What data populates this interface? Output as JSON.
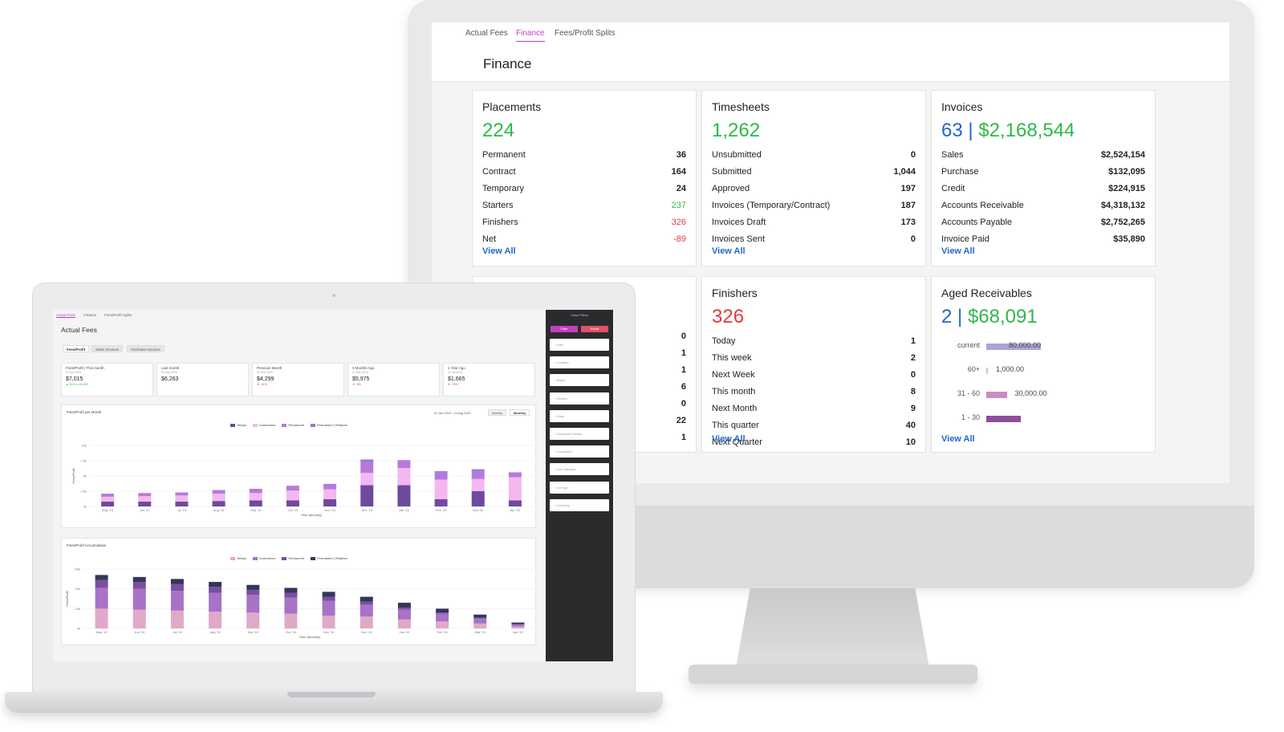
{
  "desktop": {
    "tabs": [
      {
        "label": "Actual Fees",
        "active": false
      },
      {
        "label": "Finance",
        "active": true
      },
      {
        "label": "Fees/Profit Splits",
        "active": false
      }
    ],
    "page_title": "Finance",
    "view_all": "View All",
    "cards": {
      "placements": {
        "title": "Placements",
        "big": "224",
        "rows": [
          {
            "label": "Permanent",
            "value": "36"
          },
          {
            "label": "Contract",
            "value": "164"
          },
          {
            "label": "Temporary",
            "value": "24"
          },
          {
            "label": "Starters",
            "value": "237"
          },
          {
            "label": "Finishers",
            "value": "326"
          },
          {
            "label": "Net",
            "value": "-89"
          }
        ]
      },
      "timesheets": {
        "title": "Timesheets",
        "big": "1,262",
        "rows": [
          {
            "label": "Unsubmitted",
            "value": "0"
          },
          {
            "label": "Submitted",
            "value": "1,044"
          },
          {
            "label": "Approved",
            "value": "197"
          },
          {
            "label": "Invoices (Temporary/Contract)",
            "value": "187"
          },
          {
            "label": "Invoices Draft",
            "value": "173"
          },
          {
            "label": "Invoices Sent",
            "value": "0"
          }
        ]
      },
      "invoices": {
        "title": "Invoices",
        "big_count": "63",
        "big_sep": " | ",
        "big_amount": "$2,168,544",
        "rows": [
          {
            "label": "Sales",
            "value": "$2,524,154"
          },
          {
            "label": "Purchase",
            "value": "$132,095"
          },
          {
            "label": "Credit",
            "value": "$224,915"
          },
          {
            "label": "Accounts Receivable",
            "value": "$4,318,132"
          },
          {
            "label": "Accounts Payable",
            "value": "$2,752,265"
          },
          {
            "label": "Invoice Paid",
            "value": "$35,890"
          }
        ]
      },
      "partial": {
        "values": [
          "0",
          "1",
          "1",
          "6",
          "0",
          "22",
          "1"
        ]
      },
      "finishers": {
        "title": "Finishers",
        "big": "326",
        "rows": [
          {
            "label": "Today",
            "value": "1"
          },
          {
            "label": "This week",
            "value": "2"
          },
          {
            "label": "Next Week",
            "value": "0"
          },
          {
            "label": "This month",
            "value": "8"
          },
          {
            "label": "Next Month",
            "value": "9"
          },
          {
            "label": "This quarter",
            "value": "40"
          },
          {
            "label": "Next Quarter",
            "value": "10"
          }
        ]
      },
      "aged": {
        "title": "Aged Receivables",
        "big_count": "2",
        "big_sep": " | ",
        "big_amount": "$68,091",
        "buckets": [
          {
            "label": "current",
            "value": "80,000.00",
            "amount": 80000,
            "color": "#a9a6d6"
          },
          {
            "label": "60+",
            "value": "1,000.00",
            "amount": 1000,
            "color": "#c9c9d6"
          },
          {
            "label": "31 - 60",
            "value": "30,000.00",
            "amount": 30000,
            "color": "#cc8ac6"
          },
          {
            "label": "1 - 30",
            "value": "",
            "amount": 50000,
            "color": "#8a4e9c"
          }
        ]
      }
    }
  },
  "laptop": {
    "tabs": [
      {
        "label": "Actual Fees",
        "active": true
      },
      {
        "label": "Finance",
        "active": false
      },
      {
        "label": "Fees/Profit Splits",
        "active": false
      }
    ],
    "title": "Actual Fees",
    "subtabs": [
      {
        "label": "Fees/Profit",
        "active": true
      },
      {
        "label": "Sales Invoices",
        "active": false
      },
      {
        "label": "Purchase Invoices",
        "active": false
      }
    ],
    "kpis": [
      {
        "title": "Fees/Profit | This month",
        "sub": "01 Apr 2020",
        "value": "$7,015",
        "delta": "▲ 92% vs $3,263",
        "delta_color": "#2eb84a"
      },
      {
        "title": "Last month",
        "sub": "01 Mar 2020",
        "value": "$6,263",
        "delta": "",
        "delta_color": "#2eb84a"
      },
      {
        "title": "Previous Month",
        "sub": "01 Feb 2020",
        "value": "$4,299",
        "delta": "▼ -31%",
        "delta_color": "#e23b3b"
      },
      {
        "title": "3 Months Ago",
        "sub": "01 Dec 2019",
        "value": "$5,975",
        "delta": "▼ -5%",
        "delta_color": "#e23b3b"
      },
      {
        "title": "1 Year Ago",
        "sub": "01 Jul 2019",
        "value": "$1,665",
        "delta": "▼ -73%",
        "delta_color": "#e23b3b"
      }
    ],
    "filters": {
      "header": "Close Filters",
      "filter_btn": "Filter",
      "reset_btn": "Reset",
      "fields": [
        "Date",
        "Location",
        "Brand",
        "Division",
        "Team",
        "Consultant Status",
        "Consultant",
        "Job Category",
        "Job type",
        "Currency"
      ]
    },
    "range": {
      "date_range": "01 Jan 2019 - 13 Aug 2020",
      "weekly": "Weekly",
      "monthly": "Monthly"
    }
  },
  "chart_data": [
    {
      "type": "bar",
      "title": "Fees/Profit per Month",
      "xlabel": "Time (Monthly)",
      "ylabel": "Fees/Profit",
      "categories": [
        "May '19",
        "Jun '19",
        "Jul '19",
        "Aug '19",
        "Sep '19",
        "Oct '19",
        "Nov '19",
        "Dec '19",
        "Jan '20",
        "Feb '20",
        "Mar '20",
        "Apr '20"
      ],
      "ylim": [
        0,
        10
      ],
      "y_ticks": [
        "0k",
        "2.5k",
        "5k",
        "7.5k",
        "10k"
      ],
      "stacked": true,
      "series": [
        {
          "name": "Temps",
          "color": "#6e4a9e",
          "values": [
            0.8,
            0.8,
            0.8,
            0.9,
            1.0,
            1.0,
            1.2,
            3.5,
            3.5,
            1.2,
            2.5,
            1.0
          ]
        },
        {
          "name": "Contractors",
          "color": "#f4b7f0",
          "values": [
            0.8,
            0.9,
            1.0,
            1.2,
            1.2,
            1.6,
            1.6,
            2.0,
            2.8,
            3.2,
            2.0,
            3.8
          ]
        },
        {
          "name": "Permanent",
          "color": "#b57bd9",
          "values": [
            0.5,
            0.5,
            0.5,
            0.6,
            0.7,
            0.8,
            0.9,
            1.8,
            1.3,
            1.4,
            1.3,
            0.8
          ]
        },
        {
          "name": "Permanent | Retainer",
          "color": "#8b7be0",
          "values": [
            0,
            0,
            0,
            0,
            0,
            0,
            0,
            0.4,
            0,
            0,
            0.3,
            0
          ]
        }
      ]
    },
    {
      "type": "bar",
      "title": "Fees/Profit Accumulative",
      "xlabel": "Time (Monthly)",
      "ylabel": "Fees/Profit",
      "categories": [
        "May '19",
        "Jun '19",
        "Jul '19",
        "Aug '19",
        "Sep '19",
        "Oct '19",
        "Nov '19",
        "Dec '19",
        "Jan '20",
        "Feb '20",
        "Mar '20",
        "Apr '20"
      ],
      "ylim": [
        0,
        60
      ],
      "y_ticks": [
        "0k",
        "20k",
        "40k",
        "60k"
      ],
      "stacked": true,
      "series": [
        {
          "name": "Temps",
          "color": "#e0a9c8",
          "values": [
            20,
            19,
            18,
            17,
            16,
            15,
            13,
            12,
            9,
            7,
            5,
            2
          ]
        },
        {
          "name": "Contractors",
          "color": "#a872c6",
          "values": [
            21,
            21,
            20,
            19,
            18,
            16,
            15,
            12,
            10,
            8,
            5,
            2
          ]
        },
        {
          "name": "Permanent",
          "color": "#7a4f9e",
          "values": [
            8,
            7,
            7,
            6,
            5,
            5,
            4,
            3,
            2,
            1,
            1,
            0.5
          ]
        },
        {
          "name": "Permanent | Retainer",
          "color": "#34365a",
          "values": [
            5,
            5,
            5,
            5,
            5,
            5,
            5,
            5,
            5,
            4,
            3,
            1.5
          ]
        }
      ]
    }
  ]
}
